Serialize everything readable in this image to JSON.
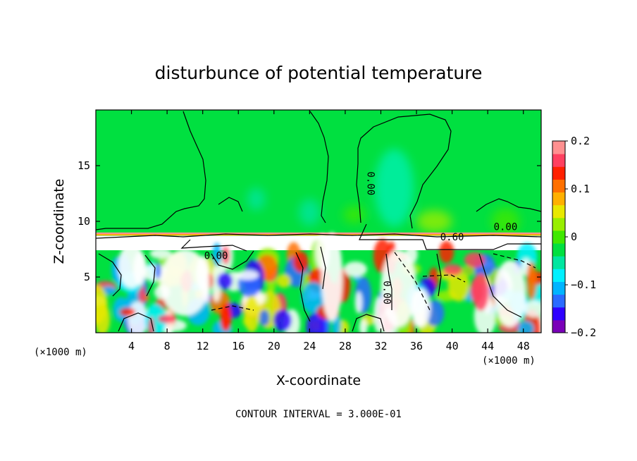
{
  "chart_data": {
    "type": "heatmap",
    "title": "disturbunce of potential temperature",
    "xlabel": "X-coordinate",
    "ylabel": "Z-coordinate",
    "x_unit": "(×1000 m)",
    "xlim": [
      0,
      50
    ],
    "ylim": [
      0,
      20
    ],
    "x_ticks": [
      4,
      8,
      12,
      16,
      20,
      24,
      28,
      32,
      36,
      40,
      44,
      48
    ],
    "y_ticks": [
      5,
      10,
      15
    ],
    "colorbar": {
      "range": [
        -0.2,
        0.2
      ],
      "tick_values": [
        0.2,
        0.1,
        0,
        -0.1,
        -0.2
      ],
      "tick_labels": [
        "0.2",
        "0.1",
        "0",
        "−0.1",
        "−0.2"
      ],
      "colors": [
        "#7a00b8",
        "#2e00ff",
        "#2a6bff",
        "#00b4ff",
        "#00f0ff",
        "#00e6a0",
        "#00e040",
        "#40e800",
        "#98ee00",
        "#e8e800",
        "#ffb000",
        "#ff7000",
        "#ff2000",
        "#ff4060",
        "#ff9090"
      ]
    },
    "contour_labels": [
      {
        "text": "0.00",
        "x": 30.5,
        "y": 13.4,
        "rot": 90
      },
      {
        "text": "0.60",
        "x": 40.0,
        "y": 8.3,
        "rot": 0
      },
      {
        "text": "0.00",
        "x": 46.0,
        "y": 9.2,
        "rot": 0
      },
      {
        "text": "0.00",
        "x": 13.5,
        "y": 6.6,
        "rot": 0
      },
      {
        "text": "0.00",
        "x": 32.3,
        "y": 3.6,
        "rot": 90
      }
    ],
    "footer": "CONTOUR INTERVAL = 3.000E-01",
    "grid": false
  }
}
